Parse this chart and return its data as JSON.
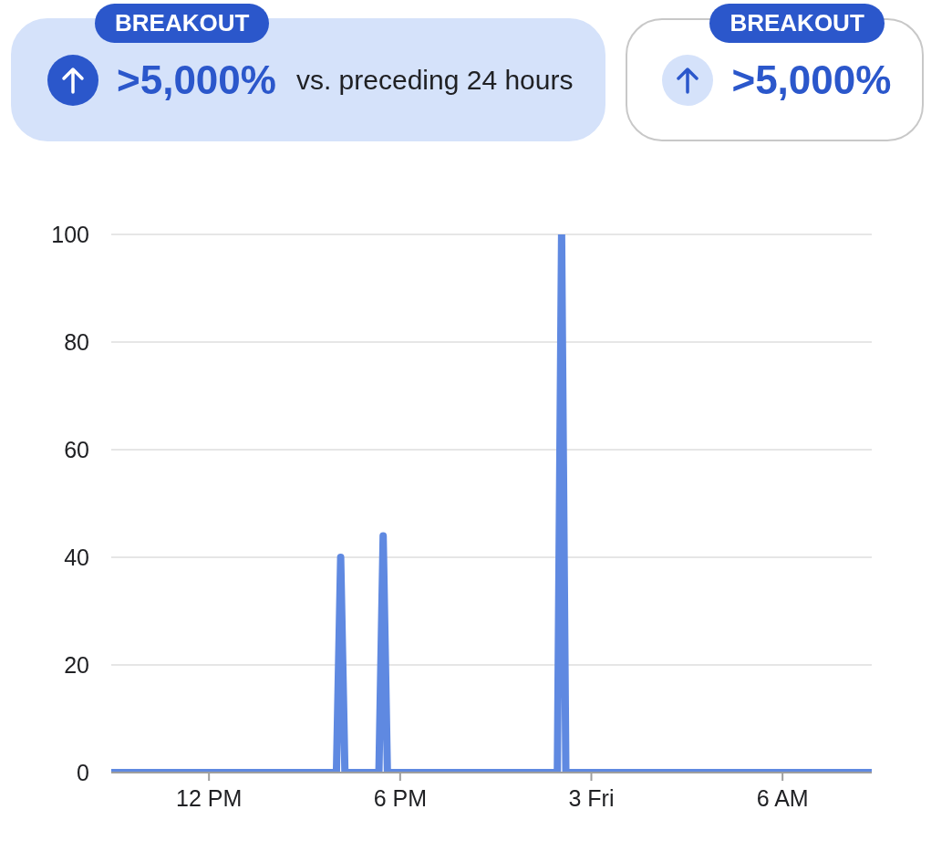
{
  "chart_data": {
    "type": "line",
    "annotations": [
      "BREAKOUT",
      ">5,000%",
      "vs. preceding 24 hours",
      "BREAKOUT",
      ">5,000%"
    ],
    "categories": [
      null,
      null,
      null,
      null,
      null,
      null,
      null,
      null,
      null,
      null,
      null,
      null,
      null,
      null,
      null,
      null,
      null,
      null,
      null,
      null,
      null,
      null,
      null,
      "12 PM",
      null,
      null,
      null,
      null,
      null,
      null,
      null,
      null,
      null,
      null,
      null,
      null,
      null,
      null,
      null,
      null,
      null,
      null,
      null,
      null,
      null,
      null,
      null,
      null,
      null,
      null,
      null,
      null,
      null,
      null,
      null,
      null,
      null,
      null,
      null,
      null,
      null,
      null,
      null,
      null,
      null,
      null,
      null,
      null,
      "6 PM",
      null,
      null,
      null,
      null,
      null,
      null,
      null,
      null,
      null,
      null,
      null,
      null,
      null,
      null,
      null,
      null,
      null,
      null,
      null,
      null,
      null,
      null,
      null,
      null,
      null,
      null,
      null,
      null,
      null,
      null,
      null,
      null,
      null,
      null,
      null,
      null,
      null,
      null,
      null,
      null,
      null,
      null,
      null,
      null,
      "3 Fri",
      null,
      null,
      null,
      null,
      null,
      null,
      null,
      null,
      null,
      null,
      null,
      null,
      null,
      null,
      null,
      null,
      null,
      null,
      null,
      null,
      null,
      null,
      null,
      null,
      null,
      null,
      null,
      null,
      null,
      null,
      null,
      null,
      null,
      null,
      null,
      null,
      null,
      null,
      null,
      null,
      null,
      null,
      null,
      null,
      "6 AM",
      null,
      null,
      null,
      null,
      null,
      null,
      null,
      null,
      null,
      null,
      null,
      null,
      null,
      null,
      null,
      null,
      null,
      null,
      null,
      null,
      null
    ],
    "series": [
      {
        "color": "#5f89e1",
        "values": [
          0,
          0,
          0,
          0,
          0,
          0,
          0,
          0,
          0,
          0,
          0,
          0,
          0,
          0,
          0,
          0,
          0,
          0,
          0,
          0,
          0,
          0,
          0,
          0,
          0,
          0,
          0,
          0,
          0,
          0,
          0,
          0,
          0,
          0,
          0,
          0,
          0,
          0,
          0,
          0,
          0,
          0,
          0,
          0,
          0,
          0,
          0,
          0,
          0,
          0,
          0,
          0,
          0,
          0,
          40,
          0,
          0,
          0,
          0,
          0,
          0,
          0,
          0,
          0,
          44,
          0,
          0,
          0,
          0,
          0,
          0,
          0,
          0,
          0,
          0,
          0,
          0,
          0,
          0,
          0,
          0,
          0,
          0,
          0,
          0,
          0,
          0,
          0,
          0,
          0,
          0,
          0,
          0,
          0,
          0,
          0,
          0,
          0,
          0,
          0,
          0,
          0,
          0,
          0,
          0,
          0,
          100,
          0,
          0,
          0,
          0,
          0,
          0,
          0,
          0,
          0,
          0,
          0,
          0,
          0,
          0,
          0,
          0,
          0,
          0,
          0,
          0,
          0,
          0,
          0,
          0,
          0,
          0,
          0,
          0,
          0,
          0,
          0,
          0,
          0,
          0,
          0,
          0,
          0,
          0,
          0,
          0,
          0,
          0,
          0,
          0,
          0,
          0,
          0,
          0,
          0,
          0,
          0,
          0,
          0,
          0,
          0,
          0,
          0,
          0,
          0,
          0,
          0,
          0,
          0,
          0,
          0,
          0,
          0,
          0,
          0,
          0,
          0,
          0,
          0
        ]
      }
    ],
    "ylim": [
      0,
      100
    ],
    "yticks": [
      0,
      20,
      40,
      60,
      80,
      100
    ],
    "grid": "y",
    "marker": "none",
    "line_style": "solid"
  }
}
